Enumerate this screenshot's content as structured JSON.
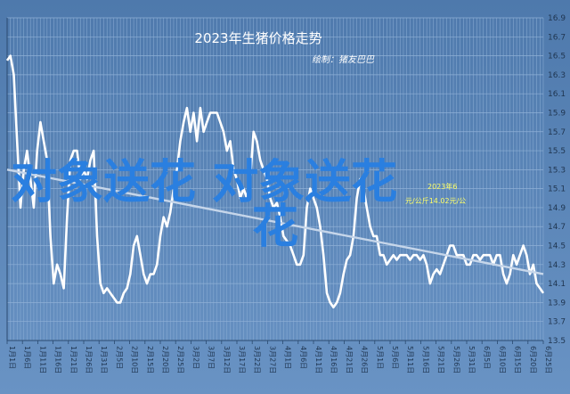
{
  "chart_data": {
    "type": "line",
    "title": "2023年生猪价格走势",
    "subtitle": "绘制：猪友巴巴",
    "ylim": [
      13.5,
      16.9
    ],
    "yticks": [
      13.5,
      13.7,
      13.9,
      14.1,
      14.3,
      14.5,
      14.7,
      14.9,
      15.1,
      15.3,
      15.5,
      15.7,
      15.9,
      16.1,
      16.3,
      16.5,
      16.7,
      16.9
    ],
    "xlabels": [
      "1月1日",
      "1月6日",
      "1月11日",
      "1月16日",
      "1月21日",
      "1月26日",
      "1月31日",
      "2月5日",
      "2月10日",
      "2月15日",
      "2月20日",
      "2月25日",
      "3月2日",
      "3月7日",
      "3月12日",
      "3月17日",
      "3月22日",
      "3月27日",
      "4月1日",
      "4月6日",
      "4月11日",
      "4月16日",
      "4月21日",
      "4月26日",
      "5月1日",
      "5月6日",
      "5月11日",
      "5月16日",
      "5月21日",
      "5月26日",
      "5月31日",
      "6月5日",
      "6月10日",
      "6月15日",
      "6月20日",
      "6月25日"
    ],
    "grid": true,
    "series": [
      {
        "values": [
          16.45,
          16.5,
          16.3,
          15.6,
          14.9,
          15.3,
          15.5,
          15.2,
          14.9,
          15.5,
          15.8,
          15.6,
          15.4,
          14.6,
          14.1,
          14.3,
          14.2,
          14.05,
          14.8,
          15.4,
          15.5,
          15.5,
          15.2,
          15.3,
          15.2,
          15.4,
          15.5,
          14.6,
          14.1,
          14.0,
          14.05,
          14.0,
          13.95,
          13.9,
          13.9,
          14.0,
          14.05,
          14.2,
          14.5,
          14.6,
          14.4,
          14.2,
          14.1,
          14.2,
          14.2,
          14.3,
          14.6,
          14.8,
          14.7,
          14.85,
          15.1,
          15.3,
          15.6,
          15.8,
          15.95,
          15.7,
          15.9,
          15.6,
          15.95,
          15.7,
          15.8,
          15.9,
          15.9,
          15.9,
          15.8,
          15.7,
          15.5,
          15.6,
          15.3,
          15.2,
          15.0,
          15.1,
          15.0,
          15.2,
          15.7,
          15.6,
          15.4,
          15.3,
          15.2,
          15.0,
          14.9,
          14.95,
          14.8,
          14.6,
          14.55,
          14.5,
          14.4,
          14.3,
          14.3,
          14.4,
          14.9,
          15.1,
          15.0,
          14.9,
          14.7,
          14.4,
          14.0,
          13.9,
          13.85,
          13.9,
          14.0,
          14.2,
          14.35,
          14.4,
          14.6,
          15.0,
          15.2,
          15.1,
          14.9,
          14.7,
          14.6,
          14.6,
          14.4,
          14.4,
          14.3,
          14.35,
          14.4,
          14.35,
          14.4,
          14.4,
          14.4,
          14.35,
          14.4,
          14.4,
          14.35,
          14.4,
          14.3,
          14.1,
          14.2,
          14.25,
          14.2,
          14.3,
          14.4,
          14.5,
          14.5,
          14.4,
          14.4,
          14.4,
          14.3,
          14.3,
          14.4,
          14.4,
          14.35,
          14.4,
          14.4,
          14.4,
          14.3,
          14.4,
          14.4,
          14.2,
          14.1,
          14.2,
          14.4,
          14.3,
          14.4,
          14.5,
          14.4,
          14.2,
          14.3,
          14.1,
          14.05,
          14.0
        ]
      },
      {
        "values": [
          15.3,
          14.2
        ]
      }
    ],
    "annotations": [
      "2023年6",
      "元/公斤14.02元/公"
    ],
    "watermark": "对象送花 对象送花"
  }
}
